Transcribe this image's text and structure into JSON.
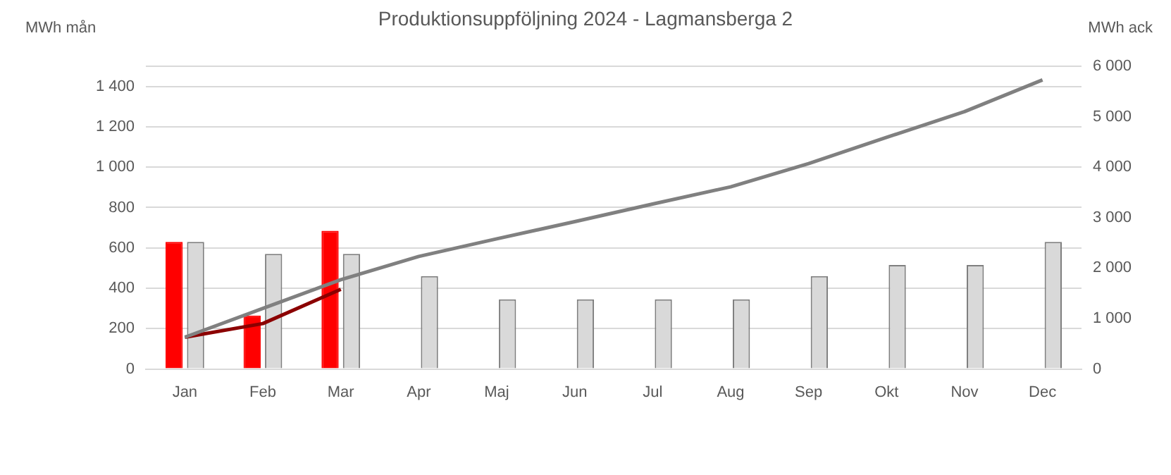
{
  "chart_data": {
    "type": "bar",
    "title": "Produktionsuppföljning 2024 - Lagmansberga 2",
    "ylabel": "MWh mån",
    "y2label": "MWh ack",
    "categories": [
      "Jan",
      "Feb",
      "Mar",
      "Apr",
      "Maj",
      "Jun",
      "Jul",
      "Aug",
      "Sep",
      "Okt",
      "Nov",
      "Dec"
    ],
    "series": [
      {
        "color": "#ff0000",
        "values": [
          630,
          265,
          685,
          null,
          null,
          null,
          null,
          null,
          null,
          null,
          null,
          null
        ]
      },
      {
        "color": "#d9d9d9",
        "values": [
          630,
          570,
          570,
          460,
          345,
          345,
          345,
          345,
          460,
          515,
          515,
          630
        ]
      },
      {
        "type": "line",
        "axis": "y2",
        "color": "#808080",
        "values": [
          630,
          1200,
          1770,
          2230,
          2580,
          2920,
          3270,
          3610,
          4070,
          4590,
          5100,
          5730
        ]
      },
      {
        "type": "line",
        "axis": "y2",
        "color": "#8b0000",
        "values": [
          630,
          900,
          1580,
          null,
          null,
          null,
          null,
          null,
          null,
          null,
          null,
          null
        ]
      }
    ],
    "ylim": [
      0,
      1500
    ],
    "yticks": [
      0,
      200,
      400,
      600,
      800,
      {
        "value": 1000,
        "label": "1 000"
      },
      {
        "value": 1200,
        "label": "1 200"
      },
      {
        "value": 1400,
        "label": "1 400"
      },
      {
        "value": 1500,
        "label": null
      }
    ],
    "y2lim": [
      0,
      6000
    ],
    "y2ticks": [
      0,
      {
        "value": 1000,
        "label": "1 000"
      },
      {
        "value": 2000,
        "label": "2 000"
      },
      {
        "value": 3000,
        "label": "3 000"
      },
      {
        "value": 4000,
        "label": "4 000"
      },
      {
        "value": 5000,
        "label": "5 000"
      },
      {
        "value": 6000,
        "label": "6 000"
      }
    ],
    "grid": "y",
    "legend": false,
    "marker": "none"
  }
}
